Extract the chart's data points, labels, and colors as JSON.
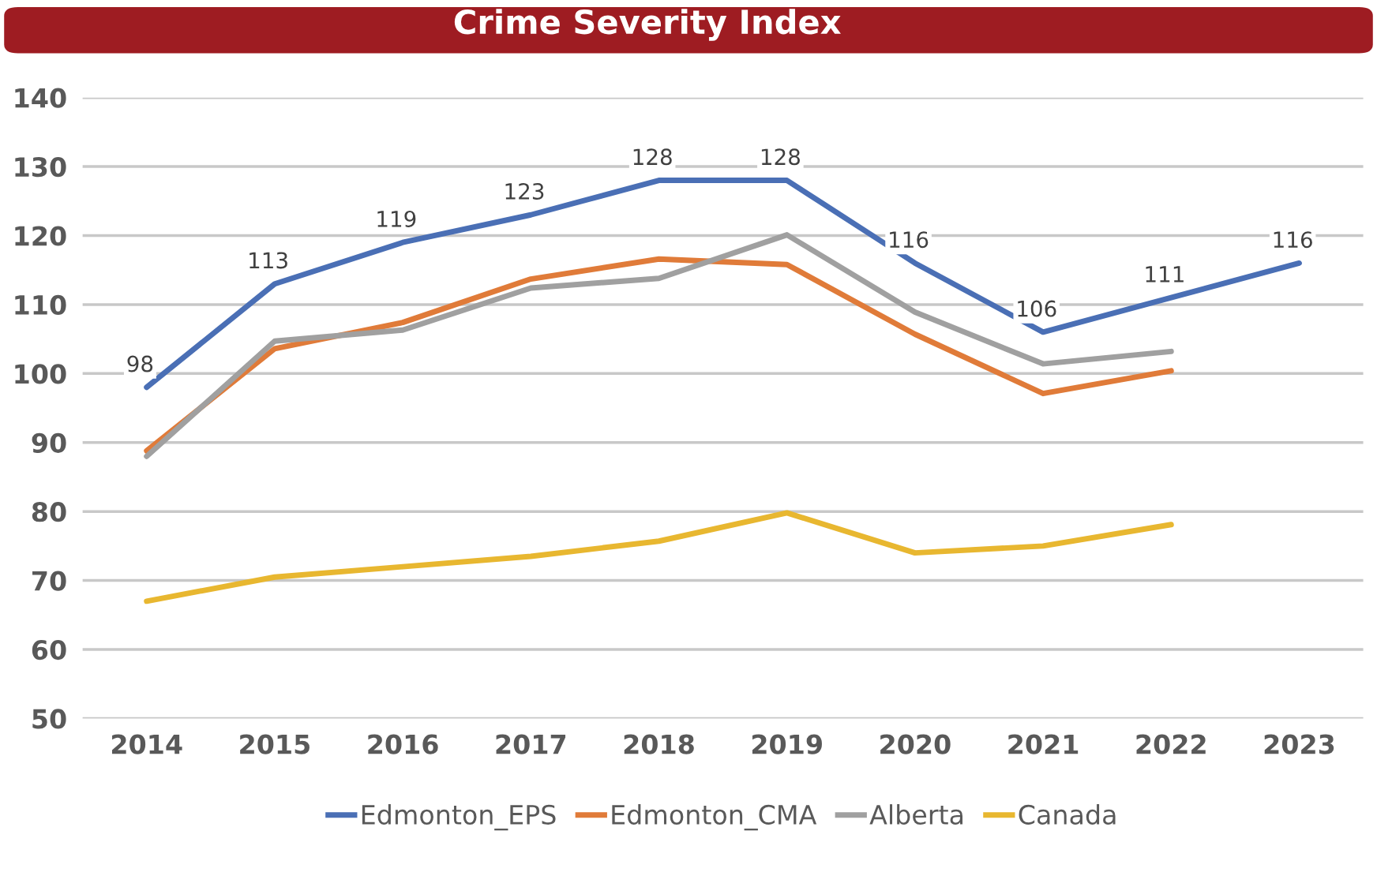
{
  "chart_data": {
    "type": "line",
    "title": "Crime Severity Index",
    "categories": [
      "2014",
      "2015",
      "2016",
      "2017",
      "2018",
      "2019",
      "2020",
      "2021",
      "2022",
      "2023"
    ],
    "series": [
      {
        "name": "Edmonton_EPS",
        "color": "#4a6fb5",
        "values": [
          98,
          113,
          119,
          123,
          128,
          128,
          116,
          106,
          111,
          116
        ],
        "value_labels": [
          "98",
          "113",
          "119",
          "123",
          "128",
          "128",
          "116",
          "106",
          "111",
          "116"
        ]
      },
      {
        "name": "Edmonton_CMA",
        "color": "#e07b39",
        "values": [
          88.8,
          103.6,
          107.4,
          113.7,
          116.6,
          115.8,
          105.7,
          97.1,
          100.4,
          null
        ]
      },
      {
        "name": "Alberta",
        "color": "#a0a0a0",
        "values": [
          88,
          104.7,
          106.3,
          112.4,
          113.8,
          120.1,
          108.9,
          101.4,
          103.2,
          null
        ]
      },
      {
        "name": "Canada",
        "color": "#e8b730",
        "values": [
          67,
          70.5,
          72,
          73.5,
          75.7,
          79.8,
          74,
          75,
          78.1,
          null
        ]
      }
    ],
    "ylim": [
      50,
      140
    ],
    "yticks": [
      50,
      60,
      70,
      80,
      90,
      100,
      110,
      120,
      130,
      140
    ],
    "grid": "y",
    "legend": "bottom",
    "marker": "none",
    "line_style": "solid"
  }
}
